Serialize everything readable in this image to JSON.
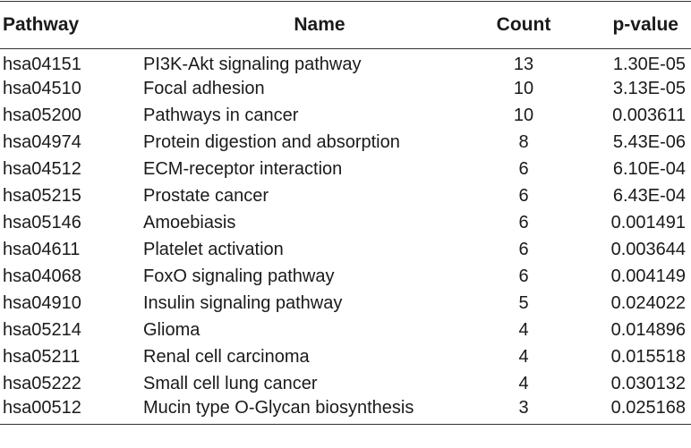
{
  "table": {
    "headers": {
      "pathway": "Pathway",
      "name": "Name",
      "count": "Count",
      "pvalue": "p-value"
    },
    "rows": [
      {
        "pathway": "hsa04151",
        "name": "PI3K-Akt signaling pathway",
        "count": "13",
        "pvalue": "1.30E-05"
      },
      {
        "pathway": "hsa04510",
        "name": "Focal adhesion",
        "count": "10",
        "pvalue": "3.13E-05"
      },
      {
        "pathway": "hsa05200",
        "name": "Pathways in cancer",
        "count": "10",
        "pvalue": "0.003611"
      },
      {
        "pathway": "hsa04974",
        "name": "Protein digestion and absorption",
        "count": "8",
        "pvalue": "5.43E-06"
      },
      {
        "pathway": "hsa04512",
        "name": "ECM-receptor interaction",
        "count": "6",
        "pvalue": "6.10E-04"
      },
      {
        "pathway": "hsa05215",
        "name": "Prostate cancer",
        "count": "6",
        "pvalue": "6.43E-04"
      },
      {
        "pathway": "hsa05146",
        "name": "Amoebiasis",
        "count": "6",
        "pvalue": "0.001491"
      },
      {
        "pathway": "hsa04611",
        "name": "Platelet activation",
        "count": "6",
        "pvalue": "0.003644"
      },
      {
        "pathway": "hsa04068",
        "name": "FoxO signaling pathway",
        "count": "6",
        "pvalue": "0.004149"
      },
      {
        "pathway": "hsa04910",
        "name": "Insulin signaling pathway",
        "count": "5",
        "pvalue": "0.024022"
      },
      {
        "pathway": "hsa05214",
        "name": "Glioma",
        "count": "4",
        "pvalue": "0.014896"
      },
      {
        "pathway": "hsa05211",
        "name": "Renal cell carcinoma",
        "count": "4",
        "pvalue": "0.015518"
      },
      {
        "pathway": "hsa05222",
        "name": "Small cell lung cancer",
        "count": "4",
        "pvalue": "0.030132"
      },
      {
        "pathway": "hsa00512",
        "name": "Mucin type O-Glycan biosynthesis",
        "count": "3",
        "pvalue": "0.025168"
      }
    ]
  }
}
